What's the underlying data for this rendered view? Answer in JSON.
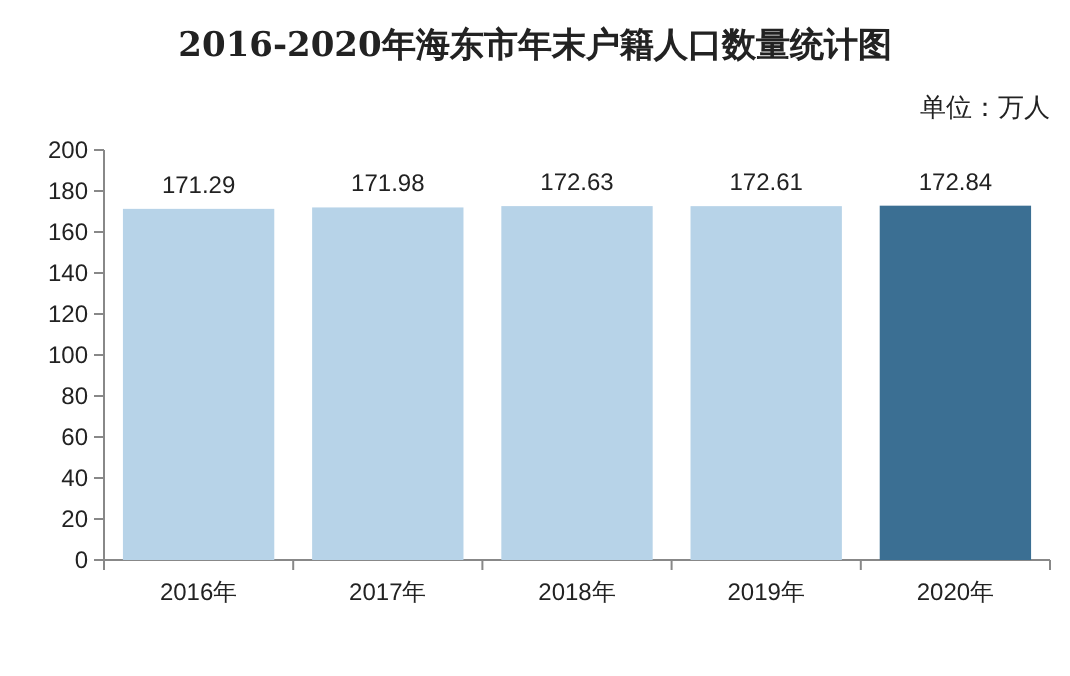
{
  "chart_data": {
    "type": "bar",
    "title": "2016-2020年海东市年末户籍人口数量统计图",
    "annotations": [
      "单位：万人"
    ],
    "categories": [
      "2016年",
      "2017年",
      "2018年",
      "2019年",
      "2020年"
    ],
    "values": [
      171.29,
      171.98,
      172.63,
      172.61,
      172.84
    ],
    "colors": [
      "#b7d3e8",
      "#b7d3e8",
      "#b7d3e8",
      "#b7d3e8",
      "#3b6f93"
    ],
    "ylim": [
      0,
      200
    ],
    "yticks": [
      0,
      20,
      40,
      60,
      80,
      100,
      120,
      140,
      160,
      180,
      200
    ],
    "data_labels": true
  }
}
